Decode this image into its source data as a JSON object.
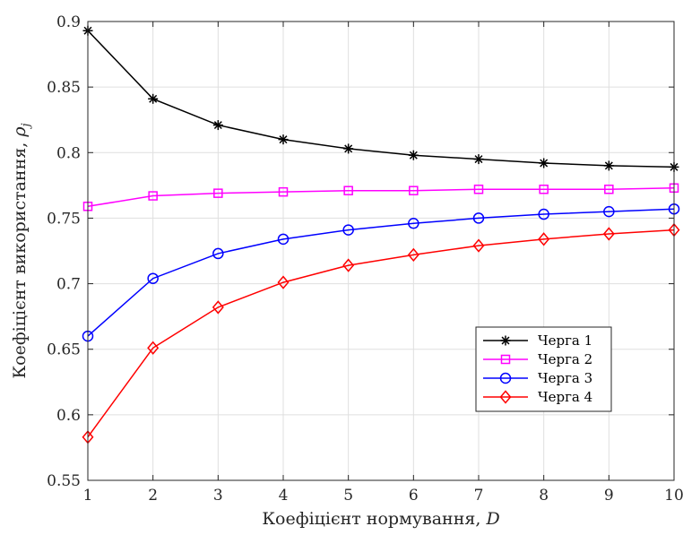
{
  "chart_data": {
    "type": "line",
    "xlabel": "Коефіцієнт нормування, ",
    "xlabel_var": "D",
    "ylabel": "Коефіцієнт використання, ",
    "ylabel_var": "ρ",
    "ylabel_sub": "j",
    "xlim": [
      1,
      10
    ],
    "ylim": [
      0.55,
      0.9
    ],
    "xticks": [
      1,
      2,
      3,
      4,
      5,
      6,
      7,
      8,
      9,
      10
    ],
    "yticks": [
      0.55,
      0.6,
      0.65,
      0.7,
      0.75,
      0.8,
      0.85,
      0.9
    ],
    "ytick_labels": [
      "0.55",
      "0.6",
      "0.65",
      "0.7",
      "0.75",
      "0.8",
      "0.85",
      "0.9"
    ],
    "grid": true,
    "legend_position": "lower-right",
    "x": [
      1,
      2,
      3,
      4,
      5,
      6,
      7,
      8,
      9,
      10
    ],
    "series": [
      {
        "name": "Черга 1",
        "color": "#000000",
        "marker": "asterisk",
        "values": [
          0.893,
          0.841,
          0.821,
          0.81,
          0.803,
          0.798,
          0.795,
          0.792,
          0.79,
          0.789
        ]
      },
      {
        "name": "Черга 2",
        "color": "#ff00ff",
        "marker": "square",
        "values": [
          0.759,
          0.767,
          0.769,
          0.77,
          0.771,
          0.771,
          0.772,
          0.772,
          0.772,
          0.773
        ]
      },
      {
        "name": "Черга 3",
        "color": "#0000ff",
        "marker": "circle",
        "values": [
          0.66,
          0.704,
          0.723,
          0.734,
          0.741,
          0.746,
          0.75,
          0.753,
          0.755,
          0.757
        ]
      },
      {
        "name": "Черга 4",
        "color": "#ff0000",
        "marker": "diamond",
        "values": [
          0.583,
          0.651,
          0.682,
          0.701,
          0.714,
          0.722,
          0.729,
          0.734,
          0.738,
          0.741
        ]
      }
    ]
  }
}
